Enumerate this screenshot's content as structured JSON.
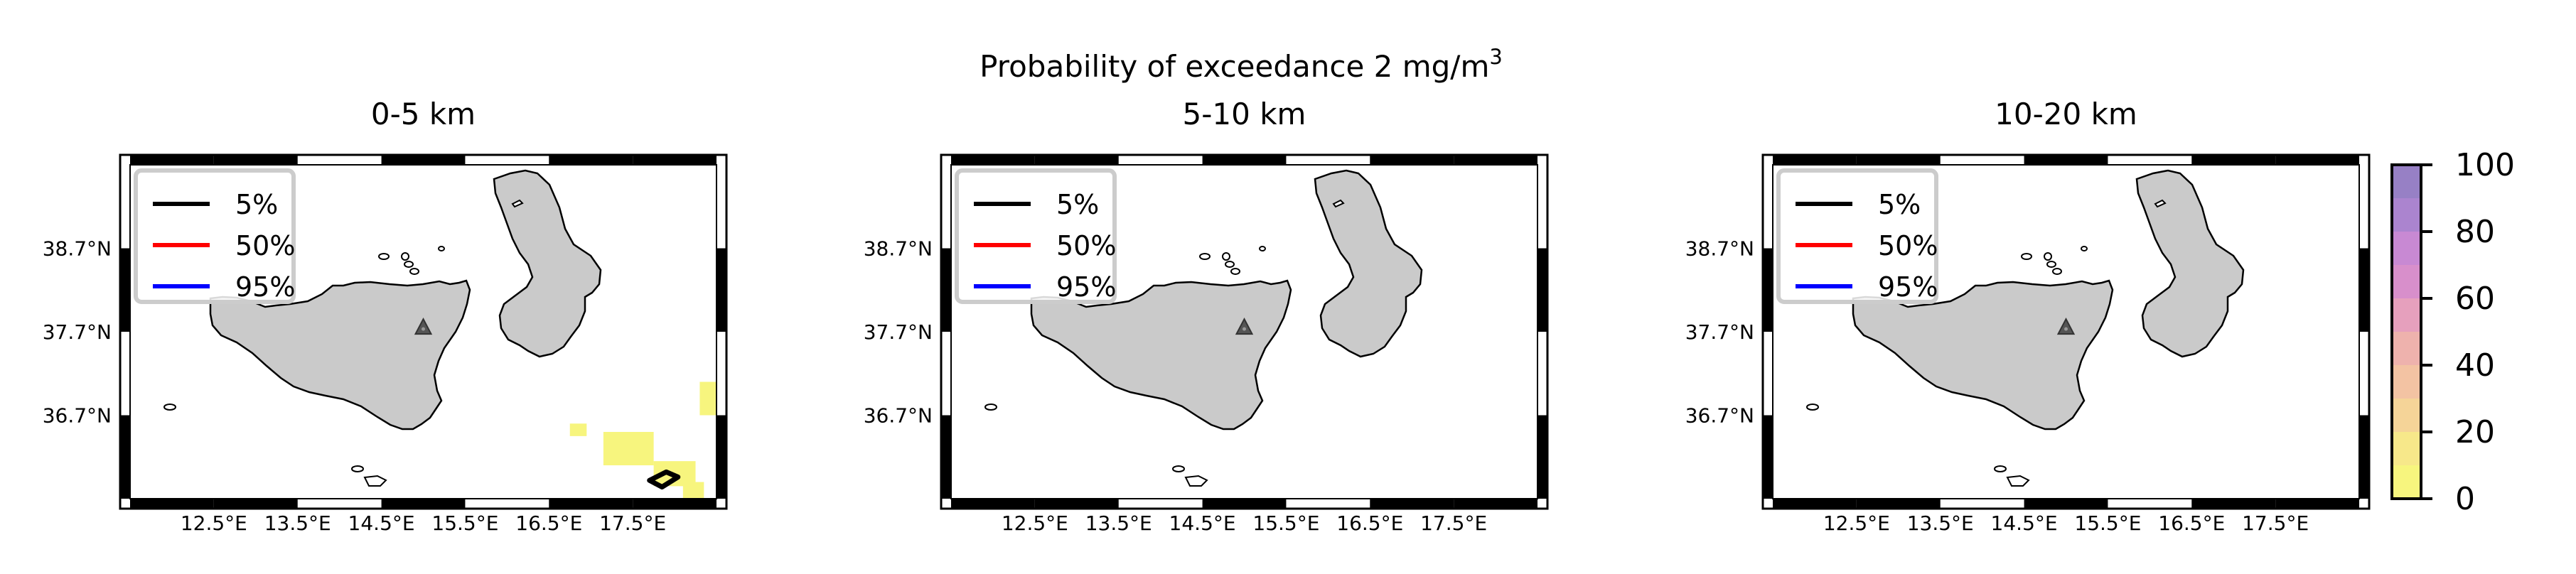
{
  "figure": {
    "suptitle_prefix": "Probability of exceedance 2 mg/m",
    "suptitle_sup": "3"
  },
  "legend": [
    {
      "label": "5%",
      "color": "#000000"
    },
    {
      "label": "50%",
      "color": "#ff0000"
    },
    {
      "label": "95%",
      "color": "#0000ff"
    }
  ],
  "colors": {
    "land": "#cacaca",
    "volcano": "#555555",
    "map_frame": "#000000"
  },
  "chart_data": [
    {
      "type": "heatmap",
      "title": "0-5 km",
      "x_ticks": [
        "12.5°E",
        "13.5°E",
        "14.5°E",
        "15.5°E",
        "16.5°E",
        "17.5°E"
      ],
      "y_ticks": [
        "38.7°N",
        "37.7°N",
        "36.7°N"
      ],
      "x_tick_values": [
        12.5,
        13.5,
        14.5,
        15.5,
        16.5,
        17.5
      ],
      "y_tick_values": [
        38.7,
        37.7,
        36.7
      ],
      "xlim": [
        11.5,
        18.5
      ],
      "ylim": [
        35.7,
        39.7
      ],
      "volcano": {
        "lon": 15.0,
        "lat": 37.75
      },
      "cells": [
        {
          "lon": [
            18.3,
            18.5
          ],
          "lat": [
            36.7,
            37.1
          ],
          "prob": 8
        },
        {
          "lon": [
            16.75,
            16.95
          ],
          "lat": [
            36.45,
            36.6
          ],
          "prob": 8
        },
        {
          "lon": [
            17.15,
            17.75
          ],
          "lat": [
            36.1,
            36.5
          ],
          "prob": 8
        },
        {
          "lon": [
            17.75,
            18.25
          ],
          "lat": [
            35.85,
            36.15
          ],
          "prob": 8
        },
        {
          "lon": [
            18.1,
            18.35
          ],
          "lat": [
            35.7,
            35.9
          ],
          "prob": 8
        }
      ],
      "contours": [
        {
          "level": "5%",
          "points": [
            [
              17.7,
              35.92
            ],
            [
              17.9,
              36.02
            ],
            [
              18.04,
              35.96
            ],
            [
              17.85,
              35.84
            ],
            [
              17.7,
              35.92
            ]
          ]
        }
      ]
    },
    {
      "type": "heatmap",
      "title": "5-10 km",
      "x_ticks": [
        "12.5°E",
        "13.5°E",
        "14.5°E",
        "15.5°E",
        "16.5°E",
        "17.5°E"
      ],
      "y_ticks": [
        "38.7°N",
        "37.7°N",
        "36.7°N"
      ],
      "x_tick_values": [
        12.5,
        13.5,
        14.5,
        15.5,
        16.5,
        17.5
      ],
      "y_tick_values": [
        38.7,
        37.7,
        36.7
      ],
      "xlim": [
        11.5,
        18.5
      ],
      "ylim": [
        35.7,
        39.7
      ],
      "volcano": {
        "lon": 15.0,
        "lat": 37.75
      },
      "cells": [],
      "contours": []
    },
    {
      "type": "heatmap",
      "title": "10-20 km",
      "x_ticks": [
        "12.5°E",
        "13.5°E",
        "14.5°E",
        "15.5°E",
        "16.5°E",
        "17.5°E"
      ],
      "y_ticks": [
        "38.7°N",
        "37.7°N",
        "36.7°N"
      ],
      "x_tick_values": [
        12.5,
        13.5,
        14.5,
        15.5,
        16.5,
        17.5
      ],
      "y_tick_values": [
        38.7,
        37.7,
        36.7
      ],
      "xlim": [
        11.5,
        18.5
      ],
      "ylim": [
        35.7,
        39.7
      ],
      "volcano": {
        "lon": 15.0,
        "lat": 37.75
      },
      "cells": [],
      "contours": []
    }
  ],
  "colorbar": {
    "ticks": [
      "0",
      "20",
      "40",
      "60",
      "80",
      "100"
    ],
    "tick_values": [
      0,
      20,
      40,
      60,
      80,
      100
    ],
    "range": [
      0,
      100
    ],
    "segment_colors": [
      "#f7f57e",
      "#f7e88a",
      "#f5d498",
      "#f3c3a3",
      "#eeb2ad",
      "#e6a0bd",
      "#d88fcb",
      "#c889d3",
      "#ab84cf",
      "#9780c5"
    ]
  }
}
